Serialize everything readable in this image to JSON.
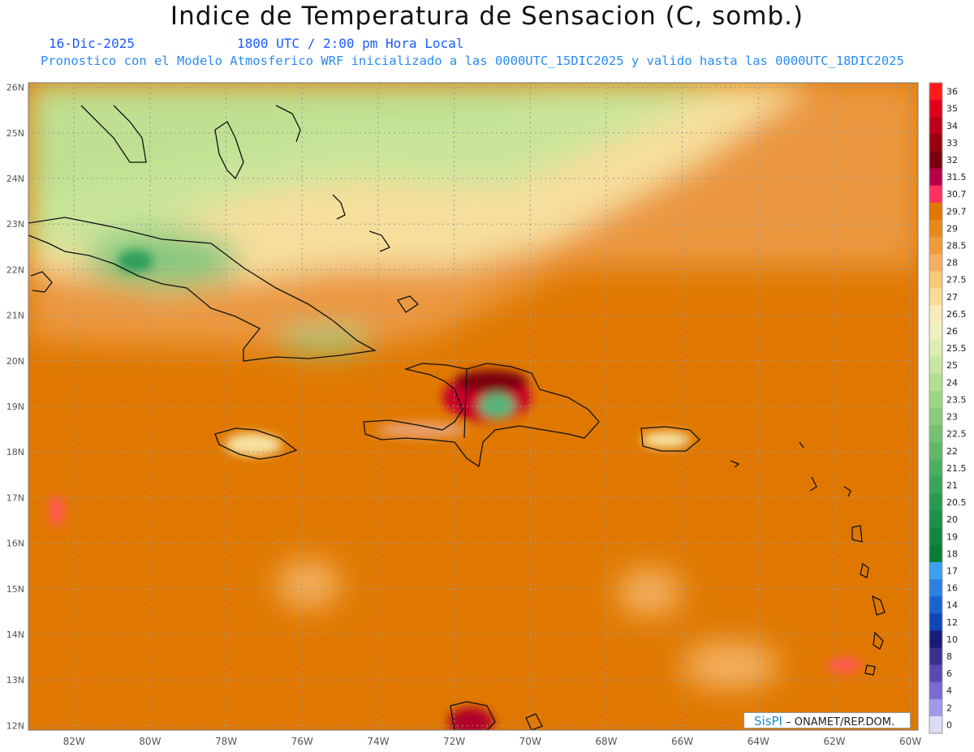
{
  "header": {
    "title": "Indice de Temperatura de Sensacion (C, somb.)",
    "date": "16-Dic-2025",
    "time": "1800 UTC / 2:00 pm Hora Local",
    "model_info": "Pronostico con el Modelo Atmosferico WRF inicializado a las 0000UTC_15DIC2025 y valido hasta las  0000UTC_18DIC2025"
  },
  "map": {
    "lon_range": [
      -83.2,
      -59.8
    ],
    "lat_range": [
      11.9,
      26.1
    ],
    "lon_ticks": [
      "82W",
      "80W",
      "78W",
      "76W",
      "74W",
      "72W",
      "70W",
      "68W",
      "66W",
      "64W",
      "62W",
      "60W"
    ],
    "lat_ticks": [
      "12N",
      "13N",
      "14N",
      "15N",
      "16N",
      "17N",
      "18N",
      "19N",
      "20N",
      "21N",
      "22N",
      "23N",
      "24N",
      "25N",
      "26N"
    ],
    "colors": {
      "hot": "#e07800",
      "warm": "#f3a24a",
      "mild": "#f6e3a3",
      "cool": "#c9e59a",
      "green": "#7cc47a",
      "very_hot": "#c8002a",
      "extreme": "#7a0010"
    }
  },
  "legend": {
    "labels": [
      "36",
      "35",
      "34",
      "33",
      "32",
      "31.5",
      "30.7",
      "29.7",
      "29",
      "28.5",
      "28",
      "27.5",
      "27",
      "26.5",
      "26",
      "25.5",
      "25",
      "24",
      "23.5",
      "23",
      "22.5",
      "22",
      "21.5",
      "21",
      "20.5",
      "20",
      "19",
      "18",
      "17",
      "16",
      "14",
      "12",
      "10",
      "8",
      "6",
      "4",
      "2",
      "0"
    ],
    "colors": [
      "#ff1a1a",
      "#e0001a",
      "#c00018",
      "#9a0010",
      "#7a000e",
      "#b8004a",
      "#ff3060",
      "#e07800",
      "#e8891a",
      "#f09a3a",
      "#f4b060",
      "#f7c878",
      "#f8dc96",
      "#f8ecb8",
      "#f0f0c0",
      "#dcefb0",
      "#c8e8a0",
      "#b2e08e",
      "#9cd680",
      "#88cc78",
      "#74c270",
      "#60b868",
      "#4cae60",
      "#3aa458",
      "#289a50",
      "#1a9048",
      "#128640",
      "#0a7c38",
      "#3da0f0",
      "#2b82e0",
      "#1a64d0",
      "#0f46b8",
      "#1a1a7a",
      "#3a3090",
      "#5a4ab0",
      "#7a6ad0",
      "#a098e8",
      "#dcdcf8"
    ]
  },
  "credit": {
    "brand": "SisPI",
    "text": "– ONAMET/REP.DOM."
  }
}
